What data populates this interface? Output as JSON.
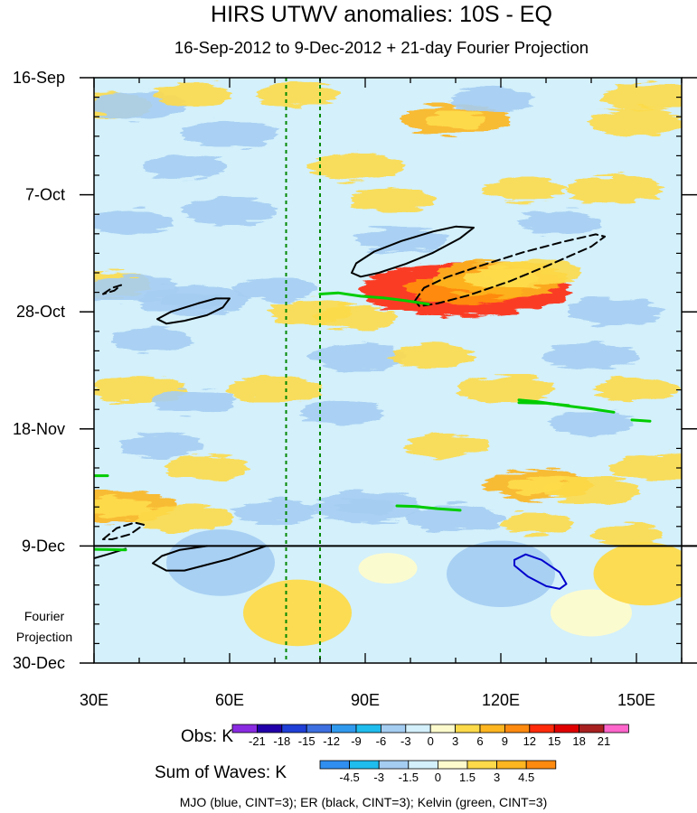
{
  "chart_data": {
    "type": "heatmap",
    "title": "HIRS UTWV anomalies: 10S - EQ",
    "subtitle": "16-Sep-2012 to 9-Dec-2012 + 21-day Fourier Projection",
    "x_axis": {
      "range": [
        30,
        160
      ],
      "ticks": [
        {
          "value": 30,
          "label": "30E"
        },
        {
          "value": 60,
          "label": "60E"
        },
        {
          "value": 90,
          "label": "90E"
        },
        {
          "value": 120,
          "label": "120E"
        },
        {
          "value": 150,
          "label": "150E"
        }
      ]
    },
    "y_axis": {
      "range_days": [
        0,
        105
      ],
      "ticks": [
        {
          "day": 0,
          "label": "16-Sep"
        },
        {
          "day": 21,
          "label": "7-Oct"
        },
        {
          "day": 42,
          "label": "28-Oct"
        },
        {
          "day": 63,
          "label": "18-Nov"
        },
        {
          "day": 84,
          "label": "9-Dec"
        },
        {
          "day": 105,
          "label": "30-Dec"
        }
      ],
      "projection_start_day": 84,
      "projection_label_lines": [
        "Fourier",
        "Projection"
      ]
    },
    "reference_longitudes": [
      72.5,
      80
    ],
    "obs_colorbar": {
      "label": "Obs: K",
      "levels": [
        "-21",
        "-18",
        "-15",
        "-12",
        "-9",
        "-6",
        "-3",
        "0",
        "3",
        "6",
        "9",
        "12",
        "15",
        "18",
        "21"
      ],
      "colors": [
        "#8a2be2",
        "#2200aa",
        "#1f3fd6",
        "#3d6fe0",
        "#2f99ee",
        "#1fbcee",
        "#a5cdf2",
        "#d3f0fb",
        "#fdfbcd",
        "#fdda4a",
        "#fdb520",
        "#ff8a10",
        "#ff2a0a",
        "#e00000",
        "#a82020",
        "#ff66cc"
      ]
    },
    "waves_colorbar": {
      "label": "Sum of Waves: K",
      "levels": [
        "-4.5",
        "-3",
        "-1.5",
        "0",
        "1.5",
        "3",
        "4.5"
      ],
      "colors": [
        "#2f8ef0",
        "#1fbcee",
        "#a5cdf2",
        "#d3f0fb",
        "#fdfbcd",
        "#fdda4a",
        "#fdb520",
        "#ff8a10"
      ]
    },
    "anomaly_features": [
      {
        "lon": 33,
        "day": 5,
        "value": 4.5
      },
      {
        "lon": 40,
        "day": 5,
        "value": -5
      },
      {
        "lon": 52,
        "day": 3,
        "value": 3.5
      },
      {
        "lon": 75,
        "day": 3,
        "value": 4
      },
      {
        "lon": 110,
        "day": 7.5,
        "value": 6
      },
      {
        "lon": 150,
        "day": 8,
        "value": 5
      },
      {
        "lon": 153,
        "day": 3.5,
        "value": 5
      },
      {
        "lon": 118,
        "day": 4,
        "value": -4
      },
      {
        "lon": 60,
        "day": 10,
        "value": -5
      },
      {
        "lon": 50,
        "day": 16,
        "value": -4
      },
      {
        "lon": 88,
        "day": 16,
        "value": 5
      },
      {
        "lon": 96,
        "day": 22,
        "value": 4
      },
      {
        "lon": 125,
        "day": 20,
        "value": 4
      },
      {
        "lon": 145,
        "day": 20,
        "value": 5
      },
      {
        "lon": 60,
        "day": 24,
        "value": -5
      },
      {
        "lon": 38,
        "day": 26,
        "value": -4
      },
      {
        "lon": 98,
        "day": 29,
        "value": -4.5
      },
      {
        "lon": 133,
        "day": 26,
        "value": -4
      },
      {
        "lon": 112,
        "day": 38,
        "value": 14
      },
      {
        "lon": 120,
        "day": 36,
        "value": 8
      },
      {
        "lon": 127,
        "day": 35,
        "value": 5
      },
      {
        "lon": 32,
        "day": 37,
        "value": 5
      },
      {
        "lon": 52,
        "day": 40,
        "value": -6
      },
      {
        "lon": 38,
        "day": 38,
        "value": -5
      },
      {
        "lon": 70,
        "day": 38,
        "value": -4
      },
      {
        "lon": 78,
        "day": 42,
        "value": 4
      },
      {
        "lon": 88,
        "day": 43,
        "value": 4
      },
      {
        "lon": 145,
        "day": 42,
        "value": -5
      },
      {
        "lon": 43,
        "day": 47,
        "value": -4
      },
      {
        "lon": 88,
        "day": 50,
        "value": -5
      },
      {
        "lon": 105,
        "day": 50,
        "value": 4
      },
      {
        "lon": 140,
        "day": 50,
        "value": -5
      },
      {
        "lon": 40,
        "day": 56,
        "value": 5
      },
      {
        "lon": 70,
        "day": 56,
        "value": 5
      },
      {
        "lon": 121,
        "day": 56,
        "value": 5
      },
      {
        "lon": 150,
        "day": 56,
        "value": 4
      },
      {
        "lon": 52,
        "day": 58,
        "value": -4
      },
      {
        "lon": 85,
        "day": 60,
        "value": -4
      },
      {
        "lon": 140,
        "day": 62,
        "value": -4
      },
      {
        "lon": 45,
        "day": 66,
        "value": -4
      },
      {
        "lon": 108,
        "day": 66,
        "value": 4
      },
      {
        "lon": 55,
        "day": 70,
        "value": 4
      },
      {
        "lon": 128,
        "day": 73,
        "value": 6
      },
      {
        "lon": 140,
        "day": 74,
        "value": 5
      },
      {
        "lon": 155,
        "day": 70,
        "value": 5
      },
      {
        "lon": 35,
        "day": 77,
        "value": 7
      },
      {
        "lon": 50,
        "day": 79,
        "value": 5
      },
      {
        "lon": 90,
        "day": 77,
        "value": -6
      },
      {
        "lon": 110,
        "day": 79,
        "value": -5
      },
      {
        "lon": 70,
        "day": 78,
        "value": -4
      },
      {
        "lon": 128,
        "day": 80,
        "value": 3
      },
      {
        "lon": 148,
        "day": 82,
        "value": 3
      },
      {
        "lon": 75,
        "day": 96,
        "value": 1.6
      },
      {
        "lon": 120,
        "day": 89,
        "value": -1.6
      },
      {
        "lon": 58,
        "day": 87,
        "value": -1.6
      },
      {
        "lon": 95,
        "day": 88,
        "value": 0.5
      },
      {
        "lon": 140,
        "day": 96,
        "value": 1
      },
      {
        "lon": 152,
        "day": 89,
        "value": 1.5
      }
    ],
    "contours": {
      "MJO": [
        {
          "style": "solid",
          "color": "#0000cc",
          "points": [
            [
              123,
              86.5
            ],
            [
              125.5,
              85.5
            ],
            [
              129,
              86.5
            ],
            [
              133,
              88.7
            ],
            [
              134.5,
              90.8
            ],
            [
              133,
              91.7
            ],
            [
              130,
              91.2
            ],
            [
              126,
              89.5
            ],
            [
              123,
              87.5
            ],
            [
              123,
              86.5
            ]
          ]
        }
      ],
      "ER": [
        {
          "style": "solid",
          "color": "#000000",
          "points": [
            [
              44,
              43.3
            ],
            [
              47,
              42
            ],
            [
              53,
              40.5
            ],
            [
              57,
              39.6
            ],
            [
              60,
              39.6
            ],
            [
              58.5,
              41.2
            ],
            [
              55,
              42.6
            ],
            [
              50,
              43.6
            ],
            [
              46,
              44.1
            ],
            [
              44,
              43.3
            ]
          ]
        },
        {
          "style": "solid",
          "color": "#000000",
          "points": [
            [
              87,
              35
            ],
            [
              88,
              33.3
            ],
            [
              92,
              31.2
            ],
            [
              98,
              29.3
            ],
            [
              105,
              27.6
            ],
            [
              110,
              26.7
            ],
            [
              114,
              26.9
            ],
            [
              111,
              28.8
            ],
            [
              105,
              31.4
            ],
            [
              99,
              33.4
            ],
            [
              93,
              35
            ],
            [
              89,
              35.7
            ],
            [
              87,
              35
            ]
          ]
        },
        {
          "style": "dashed",
          "color": "#000000",
          "points": [
            [
              101,
              40
            ],
            [
              103,
              37.7
            ],
            [
              108,
              35.8
            ],
            [
              116,
              33.6
            ],
            [
              125,
              31.3
            ],
            [
              134,
              29.4
            ],
            [
              141,
              28.1
            ],
            [
              143,
              28.5
            ],
            [
              140,
              30.3
            ],
            [
              131,
              33.5
            ],
            [
              122,
              36.5
            ],
            [
              113,
              39
            ],
            [
              106,
              40.5
            ],
            [
              102,
              41
            ],
            [
              101,
              40
            ]
          ]
        },
        {
          "style": "dashed",
          "color": "#000000",
          "points": [
            [
              32,
              38.8
            ],
            [
              34,
              37.7
            ],
            [
              36,
              37.2
            ],
            [
              34.5,
              38.2
            ],
            [
              32,
              38.8
            ]
          ]
        },
        {
          "style": "dashed",
          "color": "#000000",
          "points": [
            [
              32,
              82.8
            ],
            [
              35,
              80.8
            ],
            [
              39,
              79.8
            ],
            [
              41,
              80.2
            ],
            [
              38,
              81.9
            ],
            [
              34,
              82.8
            ],
            [
              32,
              82.8
            ]
          ]
        },
        {
          "style": "solid",
          "color": "#000000",
          "points": [
            [
              30,
              86.2
            ],
            [
              33,
              85.5
            ],
            [
              37,
              84.5
            ]
          ]
        },
        {
          "style": "solid",
          "color": "#000000",
          "points": [
            [
              68,
              84
            ],
            [
              60,
              86.3
            ],
            [
              50,
              88.4
            ],
            [
              46,
              88.4
            ],
            [
              43,
              87.1
            ],
            [
              45,
              85.8
            ],
            [
              49,
              84.7
            ],
            [
              55,
              84
            ]
          ]
        }
      ],
      "Kelvin": [
        {
          "style": "solid",
          "color": "#00cc00",
          "points": [
            [
              80,
              38.8
            ],
            [
              84,
              38.6
            ],
            [
              89,
              39.2
            ],
            [
              94,
              39.5
            ],
            [
              99,
              40
            ],
            [
              104,
              40.6
            ]
          ]
        },
        {
          "style": "solid",
          "color": "#00cc00",
          "points": [
            [
              124,
              57.8
            ],
            [
              128,
              58.1
            ],
            [
              135,
              58.9
            ],
            [
              140,
              59.4
            ],
            [
              145,
              60
            ]
          ]
        },
        {
          "style": "solid",
          "color": "#00cc00",
          "points": [
            [
              124,
              58.3
            ],
            [
              130,
              58.4
            ],
            [
              135,
              58.8
            ]
          ]
        },
        {
          "style": "solid",
          "color": "#00cc00",
          "points": [
            [
              149,
              61.4
            ],
            [
              153,
              61.6
            ]
          ]
        },
        {
          "style": "solid",
          "color": "#00cc00",
          "points": [
            [
              30,
              71.4
            ],
            [
              33,
              71.4
            ]
          ]
        },
        {
          "style": "solid",
          "color": "#00cc00",
          "points": [
            [
              97,
              76.8
            ],
            [
              101,
              76.9
            ],
            [
              106,
              77.3
            ],
            [
              111,
              77.6
            ]
          ]
        },
        {
          "style": "solid",
          "color": "#00cc00",
          "points": [
            [
              30,
              84.6
            ],
            [
              37,
              84.7
            ]
          ]
        }
      ]
    },
    "legend_text": "MJO (blue, CINT=3); ER (black, CINT=3); Kelvin (green, CINT=3)"
  }
}
